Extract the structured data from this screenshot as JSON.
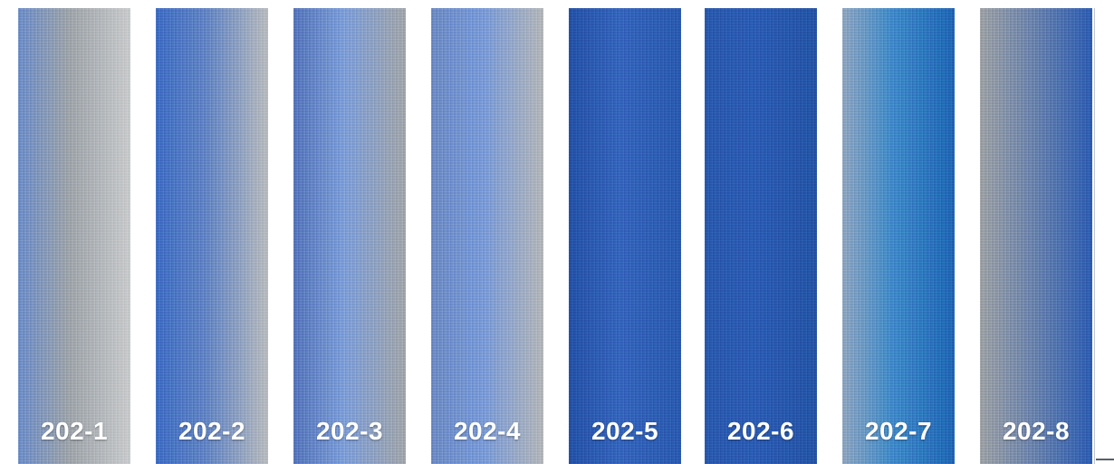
{
  "swatches": [
    {
      "code": "202-1",
      "colors": {
        "left": "#6f8fc9",
        "mid": "#9fa5ab",
        "right": "#c9cbcc"
      }
    },
    {
      "code": "202-2",
      "colors": {
        "left": "#3f6fc4",
        "mid": "#6486c4",
        "right": "#b9bcbf"
      }
    },
    {
      "code": "202-3",
      "colors": {
        "left": "#5677bb",
        "mid": "#7f9fd8",
        "right": "#a3a7ab"
      }
    },
    {
      "code": "202-4",
      "colors": {
        "left": "#6e8cc4",
        "mid": "#7a9bd8",
        "right": "#b4b7ba"
      }
    },
    {
      "code": "202-5",
      "colors": {
        "left": "#2553a8",
        "mid": "#3566bd",
        "right": "#2a5bb0"
      }
    },
    {
      "code": "202-6",
      "colors": {
        "left": "#2a5aae",
        "mid": "#2b5db5",
        "right": "#2555a6"
      }
    },
    {
      "code": "202-7",
      "colors": {
        "left": "#8fa6c1",
        "mid": "#3f8bc9",
        "right": "#1f67b5"
      }
    },
    {
      "code": "202-8",
      "colors": {
        "left": "#9ea2a6",
        "mid": "#6f86ad",
        "right": "#2e5fb3"
      }
    }
  ]
}
